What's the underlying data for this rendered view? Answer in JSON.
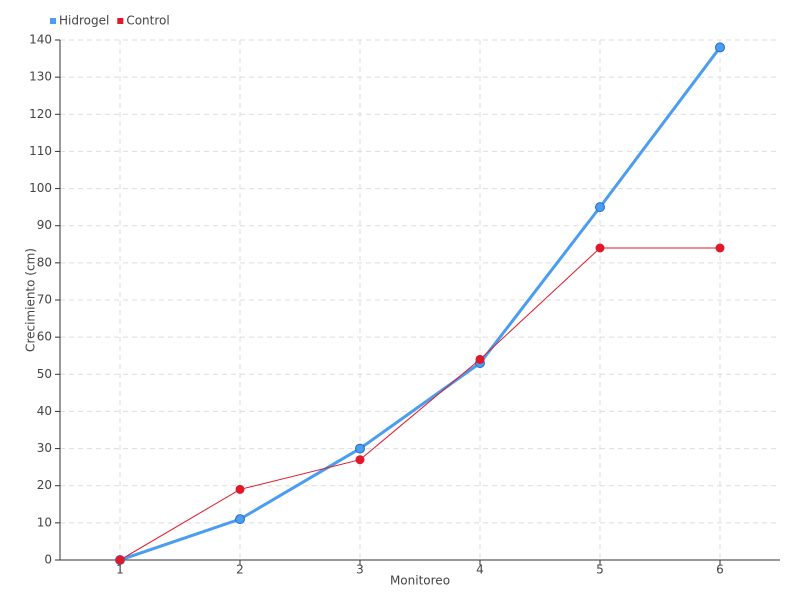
{
  "chart_data": {
    "type": "line",
    "x": [
      1,
      2,
      3,
      4,
      5,
      6
    ],
    "xlim": [
      0.5,
      6.5
    ],
    "xticks": [
      1,
      2,
      3,
      4,
      5,
      6
    ],
    "ylim": [
      0,
      140
    ],
    "yticks": [
      0,
      10,
      20,
      30,
      40,
      50,
      60,
      70,
      80,
      90,
      100,
      110,
      120,
      130,
      140
    ],
    "x_label": "Monitoreo",
    "y_label": "Crecimiento (cm)",
    "grid": true,
    "legend": "top-left",
    "series": [
      {
        "name": "Hidrogel",
        "color": "#4a9df0",
        "values": [
          0,
          11,
          30,
          53,
          95,
          138
        ]
      },
      {
        "name": "Control",
        "color": "#e0182a",
        "values": [
          0,
          19,
          27,
          54,
          84,
          84
        ]
      }
    ]
  }
}
